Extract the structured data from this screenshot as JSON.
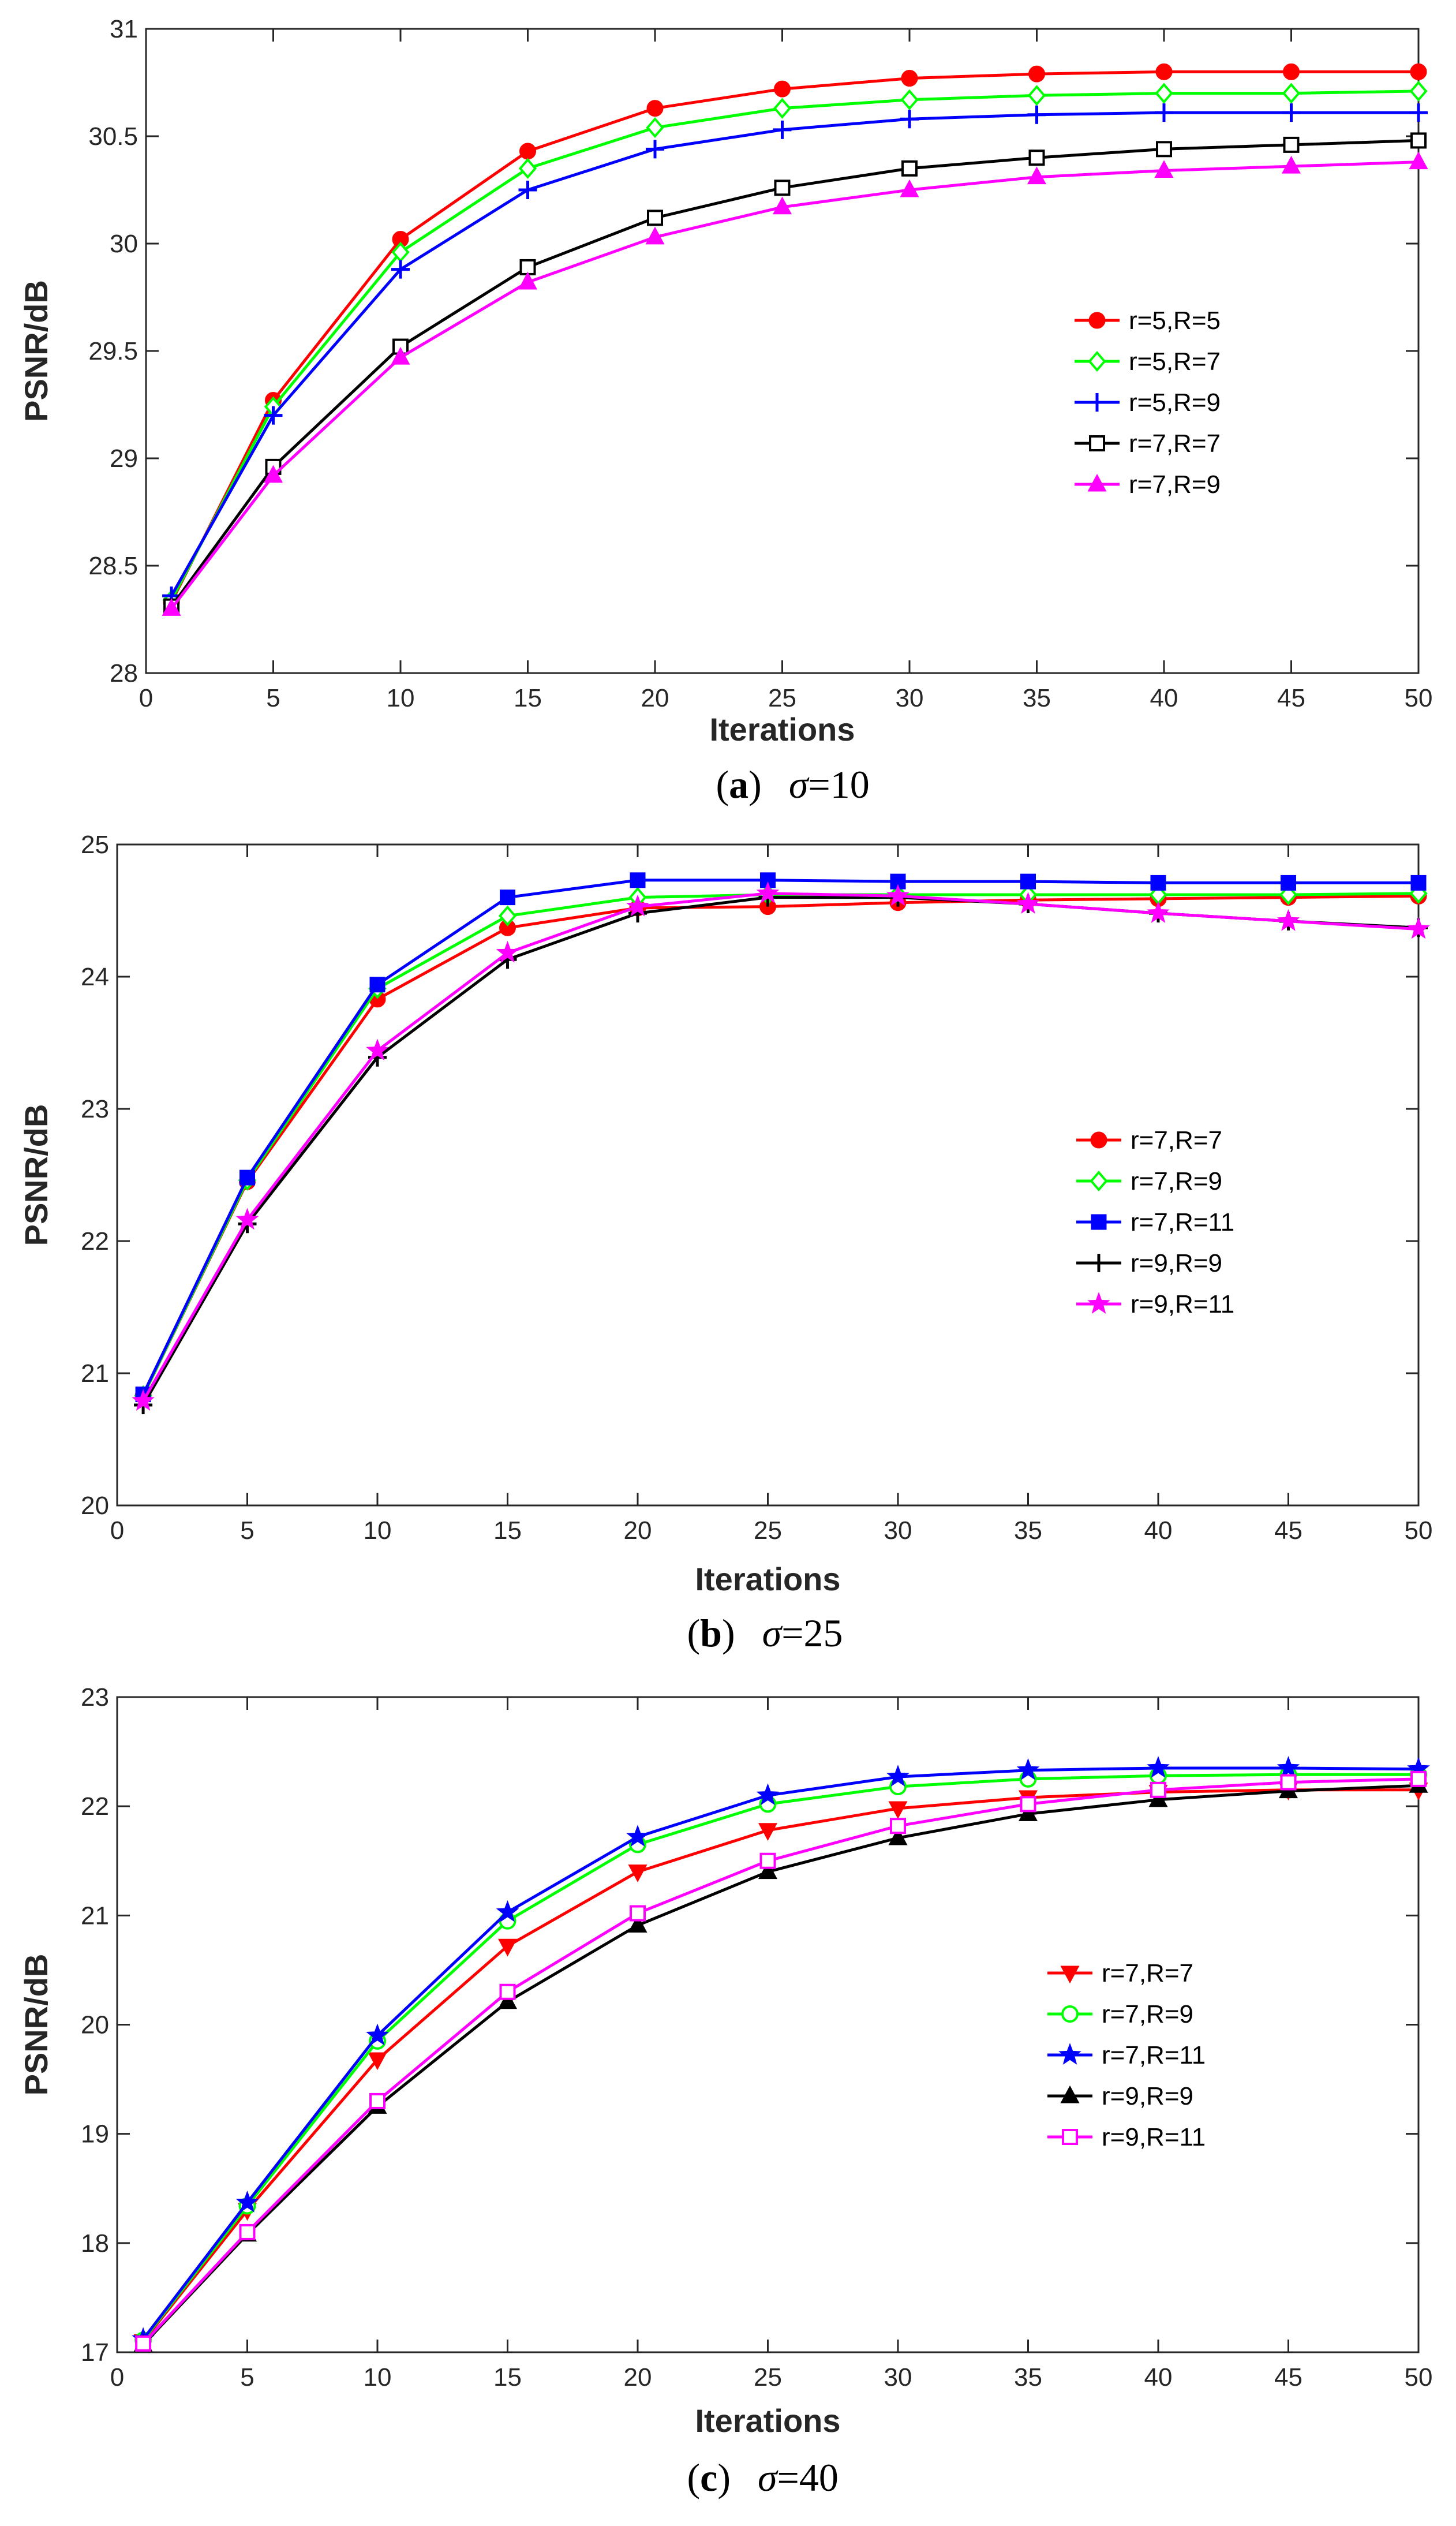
{
  "chart_data": [
    {
      "type": "line",
      "caption": {
        "tag": "a",
        "symbol": "σ",
        "value": "=10"
      },
      "xlabel": "Iterations",
      "ylabel": "PSNR/dB",
      "xlim": [
        0,
        50
      ],
      "ylim": [
        28,
        31
      ],
      "xticks": [
        0,
        5,
        10,
        15,
        20,
        25,
        30,
        35,
        40,
        45,
        50
      ],
      "yticks": [
        28,
        28.5,
        29,
        29.5,
        30,
        30.5,
        31
      ],
      "ytick_labels": [
        "28",
        "28.5",
        "29",
        "29.5",
        "30",
        "30.5",
        "31"
      ],
      "legend_position": "middle-right",
      "x": [
        1,
        5,
        10,
        15,
        20,
        25,
        30,
        35,
        40,
        45,
        50
      ],
      "series": [
        {
          "name": "r=5,R=5",
          "color": "#ff0000",
          "marker": "circle-filled",
          "values": [
            28.33,
            29.27,
            30.02,
            30.43,
            30.63,
            30.72,
            30.77,
            30.79,
            30.8,
            30.8,
            30.8
          ]
        },
        {
          "name": "r=5,R=7",
          "color": "#00ff00",
          "marker": "diamond-open",
          "values": [
            28.34,
            29.24,
            29.96,
            30.35,
            30.54,
            30.63,
            30.67,
            30.69,
            30.7,
            30.7,
            30.71
          ]
        },
        {
          "name": "r=5,R=9",
          "color": "#0000ff",
          "marker": "plus",
          "values": [
            28.36,
            29.2,
            29.88,
            30.25,
            30.44,
            30.53,
            30.58,
            30.6,
            30.61,
            30.61,
            30.61
          ]
        },
        {
          "name": "r=7,R=7",
          "color": "#000000",
          "marker": "square-open",
          "values": [
            28.31,
            28.96,
            29.52,
            29.89,
            30.12,
            30.26,
            30.35,
            30.4,
            30.44,
            30.46,
            30.48
          ]
        },
        {
          "name": "r=7,R=9",
          "color": "#ff00ff",
          "marker": "triangle-filled",
          "values": [
            28.3,
            28.92,
            29.47,
            29.82,
            30.03,
            30.17,
            30.25,
            30.31,
            30.34,
            30.36,
            30.38
          ]
        }
      ]
    },
    {
      "type": "line",
      "caption": {
        "tag": "b",
        "symbol": "σ",
        "value": "=25"
      },
      "xlabel": "Iterations",
      "ylabel": "PSNR/dB",
      "xlim": [
        0,
        50
      ],
      "ylim": [
        20,
        25
      ],
      "xticks": [
        0,
        5,
        10,
        15,
        20,
        25,
        30,
        35,
        40,
        45,
        50
      ],
      "yticks": [
        20,
        21,
        22,
        23,
        24,
        25
      ],
      "ytick_labels": [
        "20",
        "21",
        "22",
        "23",
        "24",
        "25"
      ],
      "legend_position": "middle-right",
      "x": [
        1,
        5,
        10,
        15,
        20,
        25,
        30,
        35,
        40,
        45,
        50
      ],
      "series": [
        {
          "name": "r=7,R=7",
          "color": "#ff0000",
          "marker": "circle-filled",
          "values": [
            20.83,
            22.45,
            23.83,
            24.37,
            24.52,
            24.53,
            24.56,
            24.58,
            24.59,
            24.6,
            24.61
          ]
        },
        {
          "name": "r=7,R=9",
          "color": "#00ff00",
          "marker": "diamond-open",
          "values": [
            20.83,
            22.46,
            23.91,
            24.46,
            24.6,
            24.62,
            24.62,
            24.62,
            24.62,
            24.62,
            24.63
          ]
        },
        {
          "name": "r=7,R=11",
          "color": "#0000ff",
          "marker": "square-filled",
          "values": [
            20.84,
            22.48,
            23.94,
            24.6,
            24.73,
            24.73,
            24.72,
            24.72,
            24.71,
            24.71,
            24.71
          ]
        },
        {
          "name": "r=9,R=9",
          "color": "#000000",
          "marker": "plus",
          "values": [
            20.76,
            22.13,
            23.39,
            24.13,
            24.48,
            24.6,
            24.6,
            24.55,
            24.48,
            24.42,
            24.37
          ]
        },
        {
          "name": "r=9,R=11",
          "color": "#ff00ff",
          "marker": "star",
          "values": [
            20.79,
            22.16,
            23.44,
            24.18,
            24.53,
            24.63,
            24.61,
            24.55,
            24.48,
            24.42,
            24.36
          ]
        }
      ]
    },
    {
      "type": "line",
      "caption": {
        "tag": "c",
        "symbol": "σ",
        "value": "=40"
      },
      "xlabel": "Iterations",
      "ylabel": "PSNR/dB",
      "xlim": [
        0,
        50
      ],
      "ylim": [
        17,
        23
      ],
      "xticks": [
        0,
        5,
        10,
        15,
        20,
        25,
        30,
        35,
        40,
        45,
        50
      ],
      "yticks": [
        17,
        18,
        19,
        20,
        21,
        22,
        23
      ],
      "ytick_labels": [
        "17",
        "18",
        "19",
        "20",
        "21",
        "22",
        "23"
      ],
      "legend_position": "middle-right",
      "x": [
        1,
        5,
        10,
        15,
        20,
        25,
        30,
        35,
        40,
        45,
        50
      ],
      "series": [
        {
          "name": "r=7,R=7",
          "color": "#ff0000",
          "marker": "triangle-down-filled",
          "values": [
            17.1,
            18.3,
            19.68,
            20.72,
            21.4,
            21.78,
            21.98,
            22.08,
            22.13,
            22.15,
            22.15
          ]
        },
        {
          "name": "r=7,R=9",
          "color": "#00ff00",
          "marker": "circle-open",
          "values": [
            17.11,
            18.34,
            19.85,
            20.95,
            21.65,
            22.02,
            22.18,
            22.25,
            22.28,
            22.29,
            22.29
          ]
        },
        {
          "name": "r=7,R=11",
          "color": "#0000ff",
          "marker": "star",
          "values": [
            17.12,
            18.37,
            19.9,
            21.03,
            21.72,
            22.1,
            22.27,
            22.33,
            22.35,
            22.35,
            22.34
          ]
        },
        {
          "name": "r=9,R=9",
          "color": "#000000",
          "marker": "triangle-filled",
          "values": [
            17.07,
            18.08,
            19.25,
            20.21,
            20.91,
            21.4,
            21.71,
            21.93,
            22.06,
            22.14,
            22.19
          ]
        },
        {
          "name": "r=9,R=11",
          "color": "#ff00ff",
          "marker": "square-open",
          "values": [
            17.08,
            18.1,
            19.3,
            20.3,
            21.02,
            21.5,
            21.82,
            22.02,
            22.15,
            22.22,
            22.25
          ]
        }
      ]
    }
  ]
}
